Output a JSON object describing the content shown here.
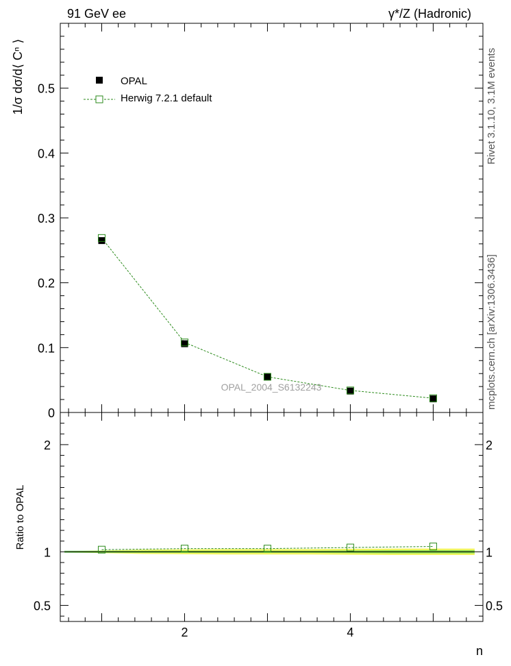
{
  "header": {
    "left": "91 GeV ee",
    "right": "γ*/Z (Hadronic)"
  },
  "side_labels": {
    "rivet": "Rivet 3.1.10,  3.1M events",
    "mcplots": "mcplots.cern.ch [arXiv:1306.3436]"
  },
  "watermark": "OPAL_2004_S6132243",
  "colors": {
    "data": "#000000",
    "mc": "#2a8a1a",
    "band_outer": "#f2f560",
    "band_inner": "#44d04a"
  },
  "chart_data": [
    {
      "type": "scatter",
      "panel": "main",
      "ylabel": "1/σ dσ/d⟨ Cⁿ ⟩",
      "xlabel": "",
      "xlim": [
        0.5,
        5.6
      ],
      "ylim": [
        0,
        0.6
      ],
      "yticks": [
        0,
        0.1,
        0.2,
        0.3,
        0.4,
        0.5
      ],
      "ytick_labels": [
        "0",
        "0.1",
        "0.2",
        "0.3",
        "0.4",
        "0.5"
      ],
      "legend_position": "top-left",
      "series": [
        {
          "name": "OPAL",
          "style": "filled-square",
          "x": [
            1,
            2,
            3,
            4,
            5
          ],
          "y": [
            0.265,
            0.106,
            0.055,
            0.033,
            0.021
          ]
        },
        {
          "name": "Herwig 7.2.1 default",
          "style": "open-square-dashed",
          "x": [
            1,
            2,
            3,
            4,
            5
          ],
          "y": [
            0.269,
            0.108,
            0.055,
            0.034,
            0.022
          ]
        }
      ]
    },
    {
      "type": "line",
      "panel": "ratio",
      "ylabel": "Ratio to OPAL",
      "xlabel": "n",
      "xlim": [
        0.5,
        5.6
      ],
      "ylim": [
        0.35,
        2.3
      ],
      "yticks": [
        0.5,
        1,
        2
      ],
      "ytick_labels": [
        "0.5",
        "1",
        "2"
      ],
      "xticks": [
        2,
        4
      ],
      "xtick_labels": [
        "2",
        "4"
      ],
      "series": [
        {
          "name": "Herwig 7.2.1 default",
          "style": "open-square-dashed",
          "x": [
            1,
            2,
            3,
            4,
            5
          ],
          "y": [
            1.02,
            1.03,
            1.03,
            1.04,
            1.05
          ]
        }
      ],
      "band": {
        "x": [
          0.55,
          1.5,
          2.5,
          3.5,
          4.5,
          5.5
        ],
        "inner_low": [
          0.99,
          0.99,
          0.99,
          0.99,
          0.985,
          0.985
        ],
        "inner_high": [
          1.01,
          1.01,
          1.01,
          1.01,
          1.015,
          1.015
        ],
        "outer_low": [
          0.995,
          0.98,
          0.975,
          0.975,
          0.97,
          0.97
        ],
        "outer_high": [
          1.005,
          1.02,
          1.025,
          1.025,
          1.03,
          1.03
        ]
      }
    }
  ]
}
